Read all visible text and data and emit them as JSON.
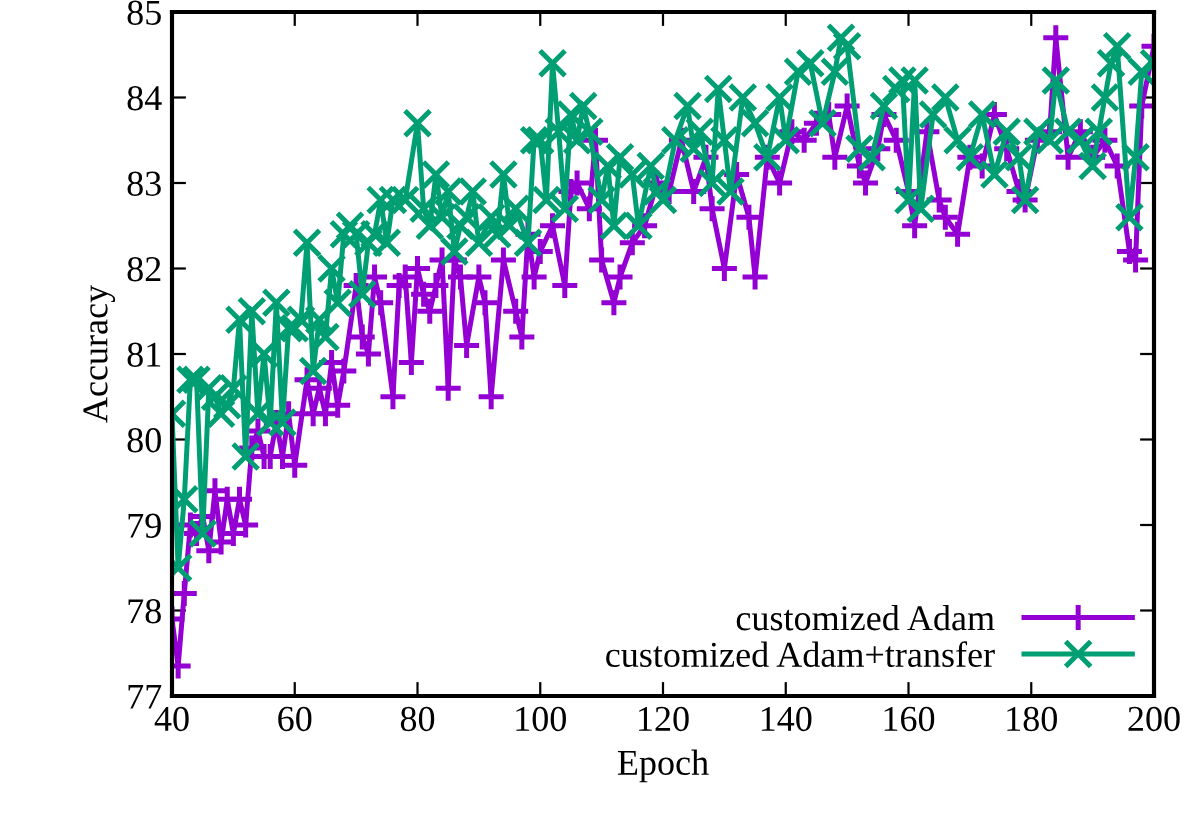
{
  "chart_data": {
    "type": "line",
    "xlabel": "Epoch",
    "ylabel": "Accuracy",
    "xlim": [
      40,
      200
    ],
    "xticks": [
      40,
      60,
      80,
      100,
      120,
      140,
      160,
      180,
      200
    ],
    "ylim": [
      77,
      85
    ],
    "yticks": [
      77,
      78,
      79,
      80,
      81,
      82,
      83,
      84,
      85
    ],
    "grid": false,
    "legend": "bottom right",
    "line_style": "solid",
    "series": [
      {
        "name": "customized Adam",
        "color": "#9400d3",
        "marker": "plus",
        "x": [
          40,
          41,
          42,
          43,
          44,
          45,
          46,
          47,
          48,
          49,
          50,
          51,
          52,
          53,
          54,
          55,
          56,
          57,
          58,
          59,
          60,
          62,
          63,
          64,
          65,
          66,
          67,
          68,
          70,
          71,
          72,
          73,
          74,
          76,
          77,
          78,
          79,
          80,
          81,
          82,
          83,
          84,
          85,
          86,
          87,
          88,
          90,
          91,
          92,
          94,
          96,
          97,
          98,
          99,
          100,
          102,
          104,
          105,
          106,
          108,
          109,
          110,
          112,
          113,
          115,
          117,
          119,
          121,
          123,
          125,
          127,
          128,
          130,
          132,
          134,
          135,
          137,
          139,
          141,
          143,
          145,
          147,
          148,
          150,
          152,
          153,
          155,
          156,
          158,
          160,
          161,
          163,
          165,
          166,
          168,
          170,
          172,
          174,
          176,
          178,
          179,
          181,
          183,
          184,
          186,
          188,
          190,
          192,
          194,
          196,
          197,
          198,
          200
        ],
        "values": [
          77.9,
          77.35,
          78.2,
          79.0,
          78.9,
          79.1,
          78.7,
          79.4,
          78.8,
          79.3,
          78.9,
          79.3,
          79.0,
          79.9,
          80.1,
          79.8,
          79.8,
          80.2,
          79.8,
          80.3,
          79.7,
          80.7,
          80.3,
          80.6,
          80.3,
          80.9,
          80.4,
          80.8,
          81.8,
          81.2,
          81.0,
          81.9,
          81.6,
          80.5,
          81.8,
          81.9,
          80.9,
          82.0,
          81.7,
          81.5,
          81.8,
          82.1,
          80.6,
          82.1,
          81.9,
          81.1,
          81.9,
          81.6,
          80.5,
          82.1,
          81.5,
          81.2,
          82.4,
          81.9,
          82.2,
          82.5,
          81.8,
          82.9,
          83.0,
          82.7,
          83.5,
          82.1,
          81.6,
          81.9,
          82.3,
          82.5,
          83.0,
          82.9,
          83.5,
          82.9,
          83.3,
          82.7,
          82.0,
          83.1,
          82.6,
          81.9,
          83.3,
          83.0,
          83.6,
          83.5,
          83.7,
          83.8,
          83.3,
          83.9,
          83.2,
          83.0,
          83.4,
          83.8,
          83.5,
          82.9,
          82.5,
          83.6,
          82.8,
          82.6,
          82.4,
          83.3,
          83.2,
          83.8,
          83.4,
          82.9,
          82.8,
          83.5,
          83.6,
          84.7,
          83.3,
          83.6,
          83.3,
          83.5,
          83.2,
          82.2,
          82.1,
          83.9,
          84.6
        ]
      },
      {
        "name": "customized Adam+transfer",
        "color": "#009e73",
        "marker": "cross",
        "x": [
          40,
          41,
          42,
          43,
          44,
          45,
          46,
          47,
          48,
          49,
          50,
          51,
          52,
          53,
          54,
          55,
          56,
          57,
          58,
          59,
          60,
          61,
          62,
          63,
          64,
          65,
          66,
          67,
          68,
          69,
          70,
          71,
          72,
          73,
          74,
          75,
          76,
          78,
          80,
          81,
          82,
          83,
          84,
          85,
          86,
          87,
          88,
          89,
          90,
          92,
          93,
          94,
          95,
          96,
          98,
          99,
          100,
          101,
          102,
          103,
          104,
          105,
          106,
          107,
          108,
          110,
          111,
          112,
          113,
          115,
          116,
          118,
          119,
          120,
          122,
          124,
          125,
          126,
          128,
          129,
          130,
          131,
          133,
          135,
          137,
          139,
          140,
          142,
          144,
          146,
          148,
          149,
          150,
          152,
          154,
          156,
          158,
          159,
          160,
          161,
          162,
          164,
          166,
          168,
          170,
          172,
          174,
          176,
          178,
          179,
          181,
          183,
          184,
          186,
          188,
          190,
          191,
          192,
          193,
          194,
          196,
          197,
          198,
          200
        ],
        "values": [
          80.3,
          78.5,
          79.3,
          80.7,
          80.7,
          78.9,
          80.6,
          80.5,
          80.3,
          80.4,
          80.6,
          81.4,
          79.8,
          81.5,
          80.3,
          81.0,
          80.2,
          81.6,
          80.2,
          81.3,
          81.3,
          81.4,
          82.3,
          80.8,
          81.4,
          81.2,
          82.0,
          81.6,
          82.4,
          82.5,
          82.4,
          81.7,
          82.3,
          82.4,
          82.8,
          82.3,
          82.8,
          82.8,
          83.7,
          82.7,
          82.5,
          83.1,
          82.6,
          82.9,
          82.2,
          82.5,
          82.6,
          82.9,
          82.3,
          82.6,
          82.4,
          83.1,
          82.5,
          82.7,
          82.3,
          83.5,
          83.5,
          82.8,
          84.4,
          83.6,
          82.7,
          83.8,
          83.5,
          83.9,
          83.6,
          82.8,
          83.2,
          82.5,
          83.3,
          83.1,
          82.5,
          83.2,
          82.9,
          82.8,
          83.5,
          83.9,
          83.4,
          83.6,
          83.0,
          84.1,
          83.5,
          82.9,
          84.0,
          83.7,
          83.3,
          84.0,
          83.5,
          84.3,
          84.4,
          83.7,
          84.3,
          84.7,
          84.6,
          83.4,
          83.3,
          83.9,
          84.1,
          84.2,
          82.8,
          84.2,
          82.7,
          83.8,
          84.0,
          83.5,
          83.3,
          83.8,
          83.1,
          83.6,
          83.3,
          82.8,
          83.6,
          83.5,
          84.2,
          83.6,
          83.5,
          83.2,
          83.6,
          84.0,
          84.4,
          84.6,
          82.6,
          83.3,
          84.3,
          84.4
        ]
      }
    ]
  }
}
